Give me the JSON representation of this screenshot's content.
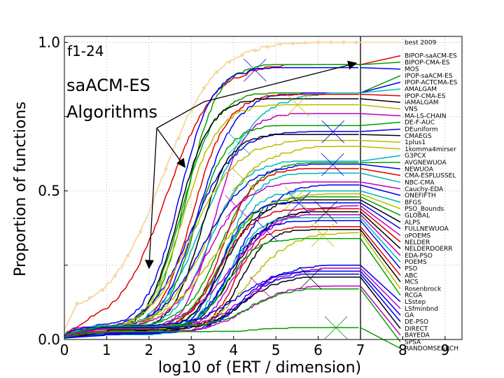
{
  "chart_data": {
    "type": "line",
    "tag": "f1-24",
    "annotation": [
      "saACM-ES",
      "Algorithms"
    ],
    "xlabel": "log10 of (ERT / dimension)",
    "ylabel": "Proportion of functions",
    "xlim": [
      0,
      9.4
    ],
    "ylim": [
      0,
      1.02
    ],
    "xticks": [
      0,
      1,
      2,
      3,
      4,
      5,
      6,
      7,
      8,
      9
    ],
    "yticks": [
      {
        "value": 0.0,
        "label": "0.0"
      },
      {
        "value": 0.5,
        "label": "0.5"
      },
      {
        "value": 1.0,
        "label": "1.0"
      }
    ],
    "grid": true,
    "budget_line_x": 7,
    "legend_position": "right",
    "series": [
      {
        "name": "best 2009",
        "color": "#f5d9a8",
        "end": 1.0,
        "legend_y": 1.0
      },
      {
        "name": "BIPOP-saACM-ES",
        "color": "#e00000",
        "end": 0.925,
        "legend_y": 0.955
      },
      {
        "name": "BIPOP-CMA-ES",
        "color": "#00a000",
        "end": 0.925,
        "legend_y": 0.933
      },
      {
        "name": "MOS",
        "color": "#0000ee",
        "end": 0.915,
        "legend_y": 0.91
      },
      {
        "name": "IPOP-saACM-ES",
        "color": "#00a000",
        "end": 0.83,
        "legend_y": 0.888
      },
      {
        "name": "IPOP-ACTCMA-ES",
        "color": "#0000ee",
        "end": 0.83,
        "legend_y": 0.866
      },
      {
        "name": "AMALGAM",
        "color": "#00b8b8",
        "end": 0.83,
        "legend_y": 0.843
      },
      {
        "name": "IPOP-CMA-ES",
        "color": "#e00000",
        "end": 0.825,
        "legend_y": 0.82
      },
      {
        "name": "iAMALGAM",
        "color": "#000000",
        "end": 0.81,
        "legend_y": 0.798
      },
      {
        "name": "VNS",
        "color": "#bcbc00",
        "end": 0.79,
        "legend_y": 0.776
      },
      {
        "name": "MA-LS-CHAIN",
        "color": "#c000c0",
        "end": 0.76,
        "legend_y": 0.753
      },
      {
        "name": "DE-F-AUC",
        "color": "#00a000",
        "end": 0.72,
        "legend_y": 0.731
      },
      {
        "name": "DEuniform",
        "color": "#0000ee",
        "end": 0.7,
        "legend_y": 0.708
      },
      {
        "name": "CMAEGS",
        "color": "#000000",
        "end": 0.69,
        "legend_y": 0.686
      },
      {
        "name": "1plus1",
        "color": "#bcbc00",
        "end": 0.67,
        "legend_y": 0.664
      },
      {
        "name": "1komma4mirser",
        "color": "#bcbc00",
        "end": 0.65,
        "legend_y": 0.641
      },
      {
        "name": "G3PCX",
        "color": "#00b8b8",
        "end": 0.6,
        "legend_y": 0.619
      },
      {
        "name": "AVGNEWUOA",
        "color": "#00a000",
        "end": 0.595,
        "legend_y": 0.596
      },
      {
        "name": "NEWUOA",
        "color": "#0000ee",
        "end": 0.59,
        "legend_y": 0.574
      },
      {
        "name": "CMA-ESPLUSSEL",
        "color": "#e00000",
        "end": 0.575,
        "legend_y": 0.552
      },
      {
        "name": "NBC-CMA",
        "color": "#00b8b8",
        "end": 0.56,
        "legend_y": 0.529
      },
      {
        "name": "Cauchy-EDA",
        "color": "#c000c0",
        "end": 0.53,
        "legend_y": 0.507
      },
      {
        "name": "ONEFIFTH",
        "color": "#0000ee",
        "end": 0.52,
        "legend_y": 0.485
      },
      {
        "name": "BFGS",
        "color": "#00b8b8",
        "end": 0.5,
        "legend_y": 0.462
      },
      {
        "name": "PSO_Bounds",
        "color": "#bcbc00",
        "end": 0.49,
        "legend_y": 0.44
      },
      {
        "name": "GLOBAL",
        "color": "#00a000",
        "end": 0.48,
        "legend_y": 0.418
      },
      {
        "name": "ALPS",
        "color": "#000000",
        "end": 0.47,
        "legend_y": 0.395
      },
      {
        "name": "FULLNEWUOA",
        "color": "#0000ee",
        "end": 0.46,
        "legend_y": 0.373
      },
      {
        "name": "oPOEMS",
        "color": "#c000c0",
        "end": 0.45,
        "legend_y": 0.35
      },
      {
        "name": "NELDER",
        "color": "#e00000",
        "end": 0.44,
        "legend_y": 0.328
      },
      {
        "name": "NELDERDOERR",
        "color": "#000000",
        "end": 0.43,
        "legend_y": 0.306
      },
      {
        "name": "EDA-PSO",
        "color": "#c000c0",
        "end": 0.42,
        "legend_y": 0.283
      },
      {
        "name": "POEMS",
        "color": "#00b8b8",
        "end": 0.41,
        "legend_y": 0.261
      },
      {
        "name": "PSO",
        "color": "#0000ee",
        "end": 0.4,
        "legend_y": 0.239
      },
      {
        "name": "ABC",
        "color": "#e00000",
        "end": 0.38,
        "legend_y": 0.216
      },
      {
        "name": "MCS",
        "color": "#000000",
        "end": 0.37,
        "legend_y": 0.194
      },
      {
        "name": "Rosenbrock",
        "color": "#bcbc00",
        "end": 0.36,
        "legend_y": 0.171
      },
      {
        "name": "RCGA",
        "color": "#00a000",
        "end": 0.34,
        "legend_y": 0.149
      },
      {
        "name": "LSstep",
        "color": "#0000ee",
        "end": 0.25,
        "legend_y": 0.127
      },
      {
        "name": "LSfminbnd",
        "color": "#c000c0",
        "end": 0.24,
        "legend_y": 0.104
      },
      {
        "name": "GA",
        "color": "#0000ee",
        "end": 0.23,
        "legend_y": 0.082
      },
      {
        "name": "DE-PSO",
        "color": "#0000ee",
        "end": 0.22,
        "legend_y": 0.06
      },
      {
        "name": "DIRECT",
        "color": "#000000",
        "end": 0.21,
        "legend_y": 0.037
      },
      {
        "name": "BAYEDA",
        "color": "#c000c0",
        "end": 0.18,
        "legend_y": 0.015
      },
      {
        "name": "SPSA",
        "color": "#00a000",
        "end": 0.17,
        "legend_y": -0.008
      },
      {
        "name": "RANDOMSEARCH",
        "color": "#00a000",
        "end": 0.04,
        "legend_y": -0.03
      }
    ]
  }
}
